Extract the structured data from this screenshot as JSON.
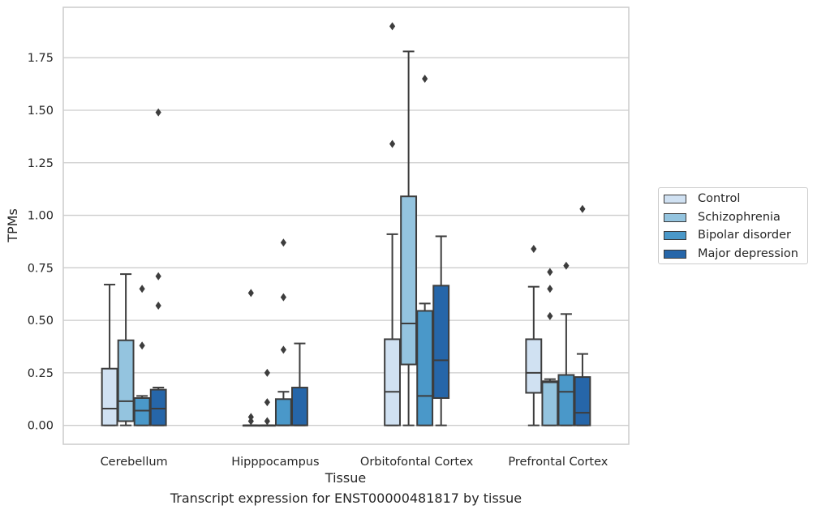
{
  "caption": "Transcript expression for ENST00000481817 by tissue",
  "chart_data": {
    "type": "box",
    "xlabel": "Tissue",
    "ylabel": "TPMs",
    "ylim": [
      -0.09,
      1.99
    ],
    "yticks": [
      "0.00",
      "0.25",
      "0.50",
      "0.75",
      "1.00",
      "1.25",
      "1.50",
      "1.75"
    ],
    "grid": "horizontal",
    "legend_position": "right",
    "categories": [
      "Cerebellum",
      "Hipppocampus",
      "Orbitofontal Cortex",
      "Prefrontal Cortex"
    ],
    "series": [
      {
        "name": "Control",
        "color": "#d0e1f2",
        "boxes": [
          {
            "whisker_low": 0,
            "q1": 0,
            "median": 0.08,
            "q3": 0.27,
            "whisker_high": 0.67,
            "outliers": []
          },
          {
            "whisker_low": 0,
            "q1": 0,
            "median": 0,
            "q3": 0,
            "whisker_high": 0,
            "outliers": [
              0.02,
              0.04,
              0.63
            ]
          },
          {
            "whisker_low": 0,
            "q1": 0,
            "median": 0.16,
            "q3": 0.41,
            "whisker_high": 0.91,
            "outliers": [
              1.34,
              1.9
            ]
          },
          {
            "whisker_low": 0,
            "q1": 0.155,
            "median": 0.25,
            "q3": 0.41,
            "whisker_high": 0.66,
            "outliers": [
              0.84
            ]
          }
        ]
      },
      {
        "name": "Schizophrenia",
        "color": "#94c4df",
        "boxes": [
          {
            "whisker_low": 0,
            "q1": 0.02,
            "median": 0.115,
            "q3": 0.405,
            "whisker_high": 0.72,
            "outliers": []
          },
          {
            "whisker_low": 0,
            "q1": 0,
            "median": 0,
            "q3": 0,
            "whisker_high": 0,
            "outliers": [
              0.02,
              0.11,
              0.25
            ]
          },
          {
            "whisker_low": 0,
            "q1": 0.29,
            "median": 0.485,
            "q3": 1.09,
            "whisker_high": 1.78,
            "outliers": []
          },
          {
            "whisker_low": 0,
            "q1": 0,
            "median": 0.205,
            "q3": 0.21,
            "whisker_high": 0.22,
            "outliers": [
              0.52,
              0.65,
              0.73
            ]
          }
        ]
      },
      {
        "name": "Bipolar disorder",
        "color": "#4a98c9",
        "boxes": [
          {
            "whisker_low": 0,
            "q1": 0,
            "median": 0.07,
            "q3": 0.13,
            "whisker_high": 0.14,
            "outliers": [
              0.38,
              0.65
            ]
          },
          {
            "whisker_low": 0,
            "q1": 0,
            "median": 0,
            "q3": 0.125,
            "whisker_high": 0.16,
            "outliers": [
              0.36,
              0.61,
              0.87
            ]
          },
          {
            "whisker_low": 0,
            "q1": 0,
            "median": 0.14,
            "q3": 0.545,
            "whisker_high": 0.58,
            "outliers": [
              1.65
            ]
          },
          {
            "whisker_low": 0,
            "q1": 0,
            "median": 0.16,
            "q3": 0.24,
            "whisker_high": 0.53,
            "outliers": [
              0.76
            ]
          }
        ]
      },
      {
        "name": "Major depression",
        "color": "#2666a9",
        "boxes": [
          {
            "whisker_low": 0,
            "q1": 0,
            "median": 0.08,
            "q3": 0.17,
            "whisker_high": 0.18,
            "outliers": [
              0.57,
              0.71,
              1.49
            ]
          },
          {
            "whisker_low": 0,
            "q1": 0,
            "median": 0,
            "q3": 0.18,
            "whisker_high": 0.39,
            "outliers": []
          },
          {
            "whisker_low": 0,
            "q1": 0.13,
            "median": 0.31,
            "q3": 0.665,
            "whisker_high": 0.9,
            "outliers": []
          },
          {
            "whisker_low": 0,
            "q1": 0,
            "median": 0.06,
            "q3": 0.23,
            "whisker_high": 0.34,
            "outliers": [
              1.03
            ]
          }
        ]
      }
    ]
  }
}
